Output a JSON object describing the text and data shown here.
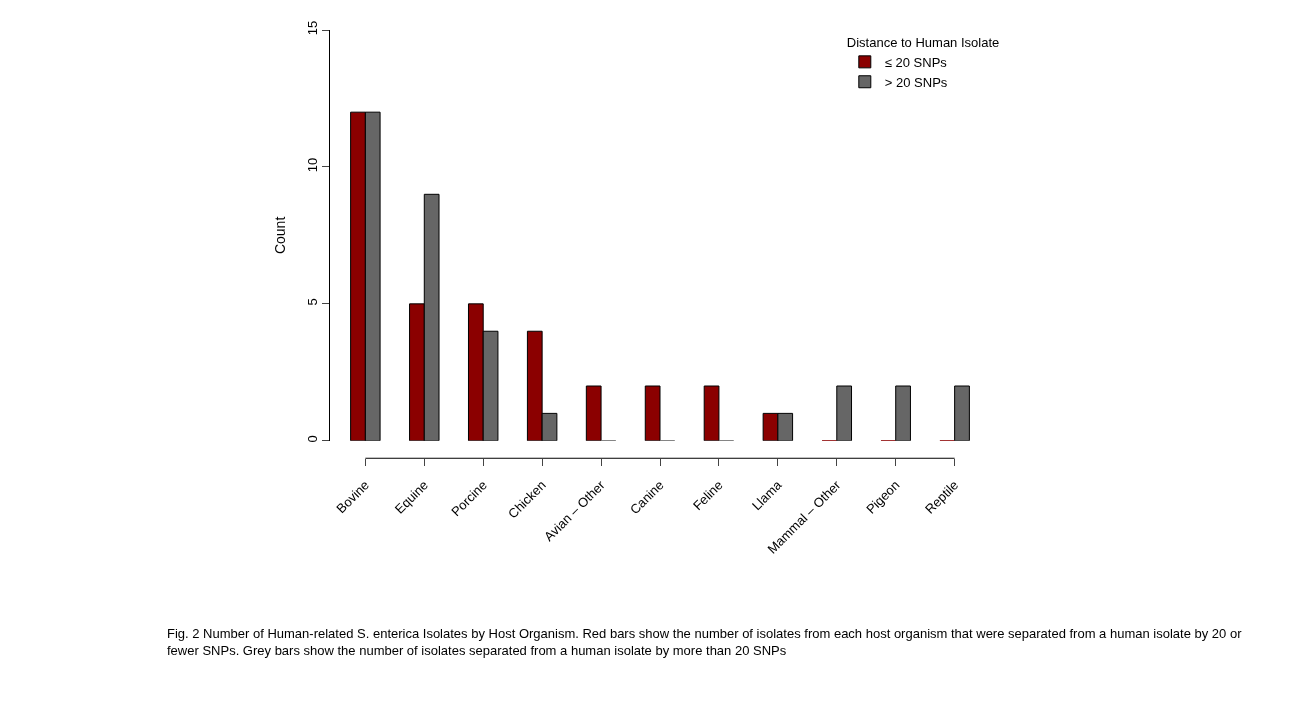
{
  "chart_data": {
    "type": "bar",
    "ylabel": "Count",
    "legend_title": "Distance to Human Isolate",
    "legend": "top right",
    "categories": [
      "Bovine",
      "Equine",
      "Porcine",
      "Chicken",
      "Avian – Other",
      "Canine",
      "Feline",
      "Llama",
      "Mammal – Other",
      "Pigeon",
      "Reptile"
    ],
    "series": [
      {
        "name": "≤ 20 SNPs",
        "color": "#8b0000",
        "values": [
          12,
          5,
          5,
          4,
          2,
          2,
          2,
          1,
          0,
          0,
          0
        ]
      },
      {
        "name": "> 20 SNPs",
        "color": "#666666",
        "values": [
          12,
          9,
          4,
          1,
          0,
          0,
          0,
          1,
          2,
          2,
          2
        ]
      }
    ],
    "ylim": [
      0,
      15
    ],
    "yticks": [
      0,
      5,
      10,
      15
    ],
    "annotations": [
      "Fig. 2 Number of Human-related S. enterica Isolates by Host Organism. Red bars show the number of isolates from each host organism that were separated from a human isolate by 20 or fewer SNPs. Grey bars show the number of isolates separated from a human isolate by more than 20 SNPs"
    ]
  }
}
